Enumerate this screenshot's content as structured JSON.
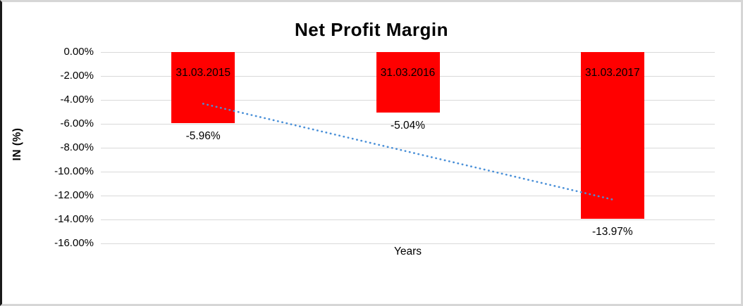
{
  "chart_data": {
    "type": "bar",
    "title": "Net Profit Margin",
    "xlabel": "Years",
    "ylabel": "IN (%)",
    "categories": [
      "31.03.2015",
      "31.03.2016",
      "31.03.2017"
    ],
    "values": [
      -5.96,
      -5.04,
      -13.97
    ],
    "value_labels": [
      "-5.96%",
      "-5.04%",
      "-13.97%"
    ],
    "ytick_labels": [
      "0.00%",
      "-2.00%",
      "-4.00%",
      "-6.00%",
      "-8.00%",
      "-10.00%",
      "-12.00%",
      "-14.00%",
      "-16.00%"
    ],
    "ylim": [
      -16,
      0
    ],
    "ytick_step": 2,
    "grid": true,
    "legend": "none",
    "bar_color": "#ff0000",
    "gridline_color": "#d9d9d9",
    "text_color": "#000000",
    "trendline": {
      "type": "linear",
      "style": "dotted",
      "color": "#4a90d8",
      "start_value": -4.32,
      "end_value": -12.33
    }
  }
}
